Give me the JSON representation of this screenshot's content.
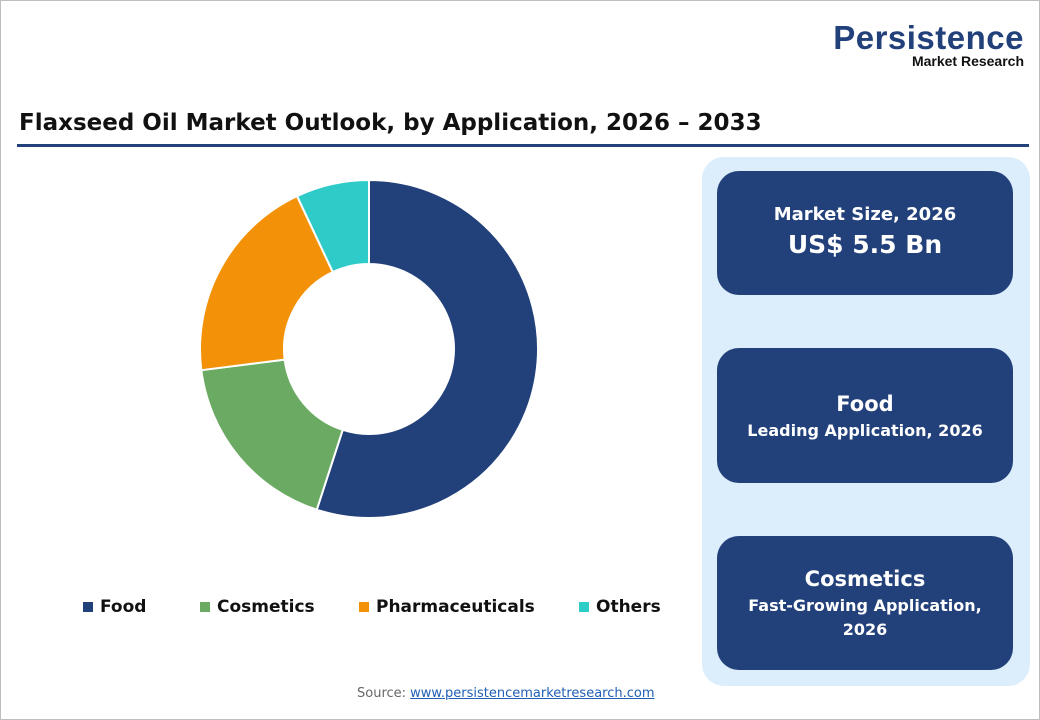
{
  "logo": {
    "main": "Persistence",
    "sub": "Market Research"
  },
  "title": "Flaxseed Oil Market Outlook, by Application, 2026 – 2033",
  "chart_data": {
    "type": "pie",
    "donut": true,
    "title": "Flaxseed Oil Market Outlook, by Application, 2026 – 2033",
    "categories": [
      "Food",
      "Cosmetics",
      "Pharmaceuticals",
      "Others"
    ],
    "values": [
      55,
      18,
      20,
      7
    ],
    "colors": [
      "#22407a",
      "#6aaa63",
      "#f39208",
      "#2ecbc9"
    ],
    "legend": "bottom"
  },
  "cards": [
    {
      "label": "Market Size, 2026",
      "value": "US$ 5.5 Bn"
    },
    {
      "value": "Food",
      "label": "Leading Application, 2026"
    },
    {
      "value": "Cosmetics",
      "label": "Fast-Growing Application, 2026"
    }
  ],
  "source": {
    "label": "Source:",
    "link": "www.persistencemarketresearch.com"
  }
}
